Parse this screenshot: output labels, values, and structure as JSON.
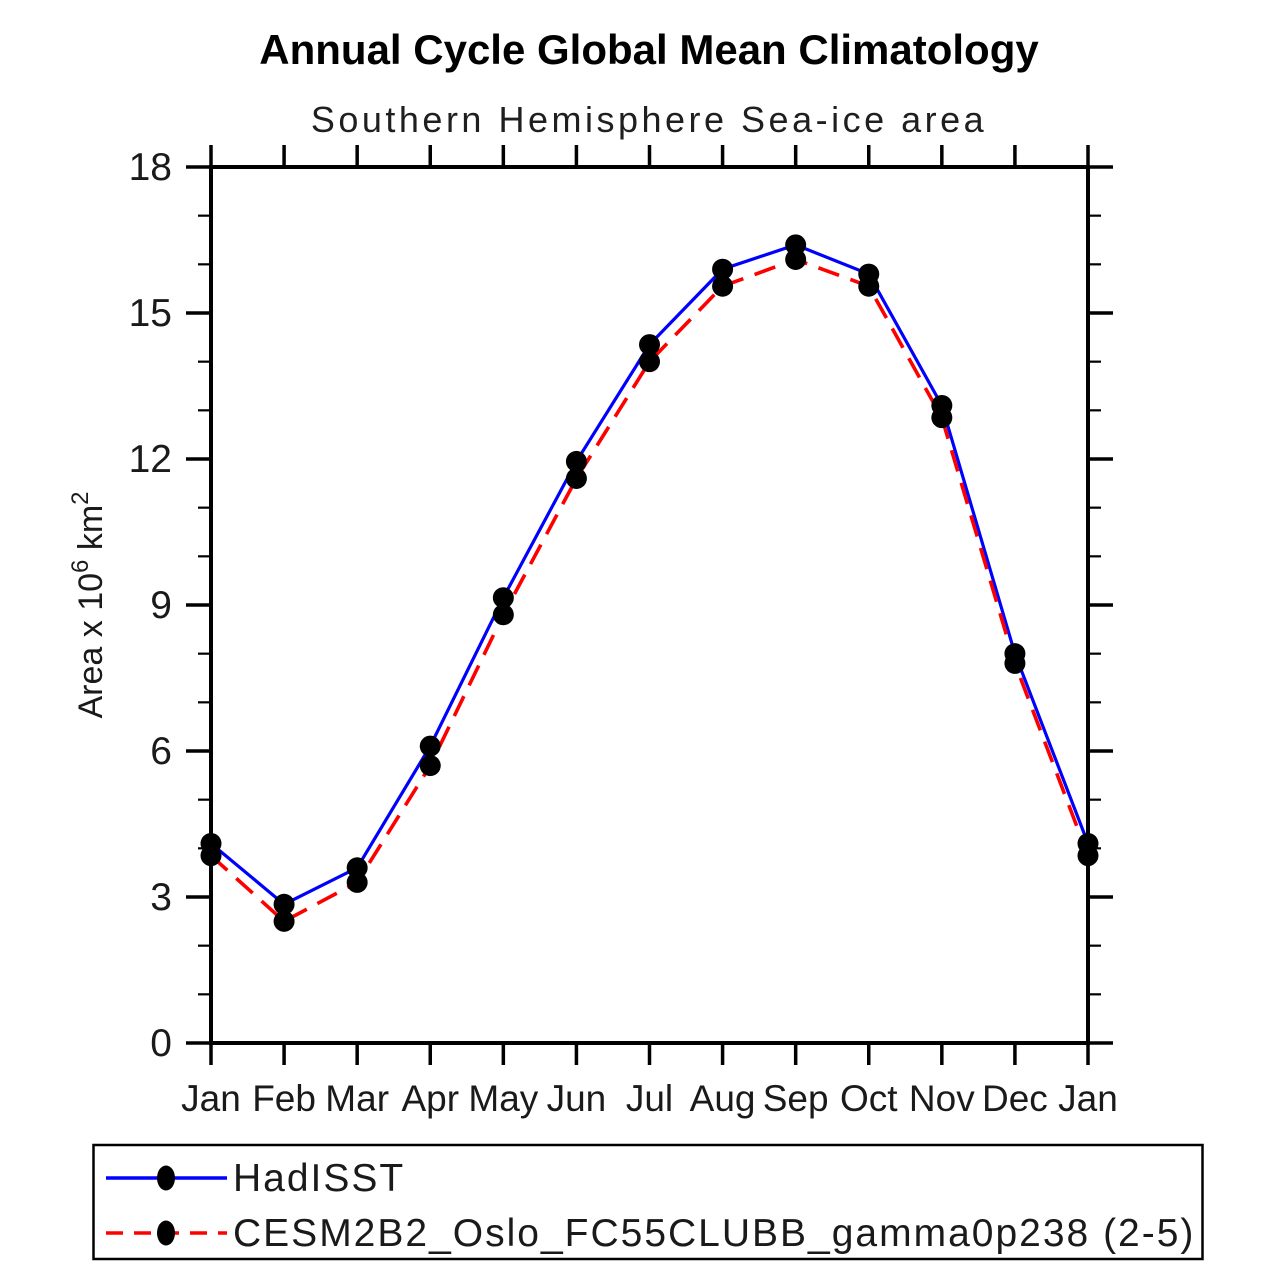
{
  "title": "Annual Cycle Global Mean Climatology",
  "subtitle": "Southern Hemisphere Sea-ice area",
  "colors": {
    "axis": "#000000",
    "hadisst_line": "#0000ff",
    "cesm_line": "#ff0000",
    "marker": "#000000",
    "background": "#ffffff"
  },
  "chart_data": {
    "type": "line",
    "title": "Annual Cycle Global Mean Climatology",
    "subtitle": "Southern Hemisphere Sea-ice area",
    "categories": [
      "Jan",
      "Feb",
      "Mar",
      "Apr",
      "May",
      "Jun",
      "Jul",
      "Aug",
      "Sep",
      "Oct",
      "Nov",
      "Dec",
      "Jan"
    ],
    "xlabel": "",
    "ylabel": "Area x 10^6 km^2",
    "ylabel_parts": [
      {
        "t": "Area x 10",
        "sup": false
      },
      {
        "t": "6",
        "sup": true
      },
      {
        "t": " km",
        "sup": false
      },
      {
        "t": "2",
        "sup": true
      }
    ],
    "ylim": [
      0,
      18
    ],
    "ytick_major": [
      0,
      3,
      6,
      9,
      12,
      15,
      18
    ],
    "ytick_minor_step": 1,
    "grid": false,
    "legend_position": "bottom",
    "series": [
      {
        "name": "HadISST",
        "color": "#0000ff",
        "style": "solid",
        "marker": "circle",
        "marker_color": "#000000",
        "values": [
          4.1,
          2.85,
          3.6,
          6.1,
          9.15,
          11.95,
          14.35,
          15.9,
          16.4,
          15.8,
          13.1,
          8.0,
          4.1
        ]
      },
      {
        "name": "CESM2B2_Oslo_FC55CLUBB_gamma0p238 (2-5)",
        "color": "#ff0000",
        "style": "dashed",
        "marker": "circle",
        "marker_color": "#000000",
        "values": [
          3.85,
          2.5,
          3.3,
          5.7,
          8.8,
          11.6,
          14.0,
          15.55,
          16.1,
          15.55,
          12.85,
          7.8,
          3.85
        ]
      }
    ]
  }
}
